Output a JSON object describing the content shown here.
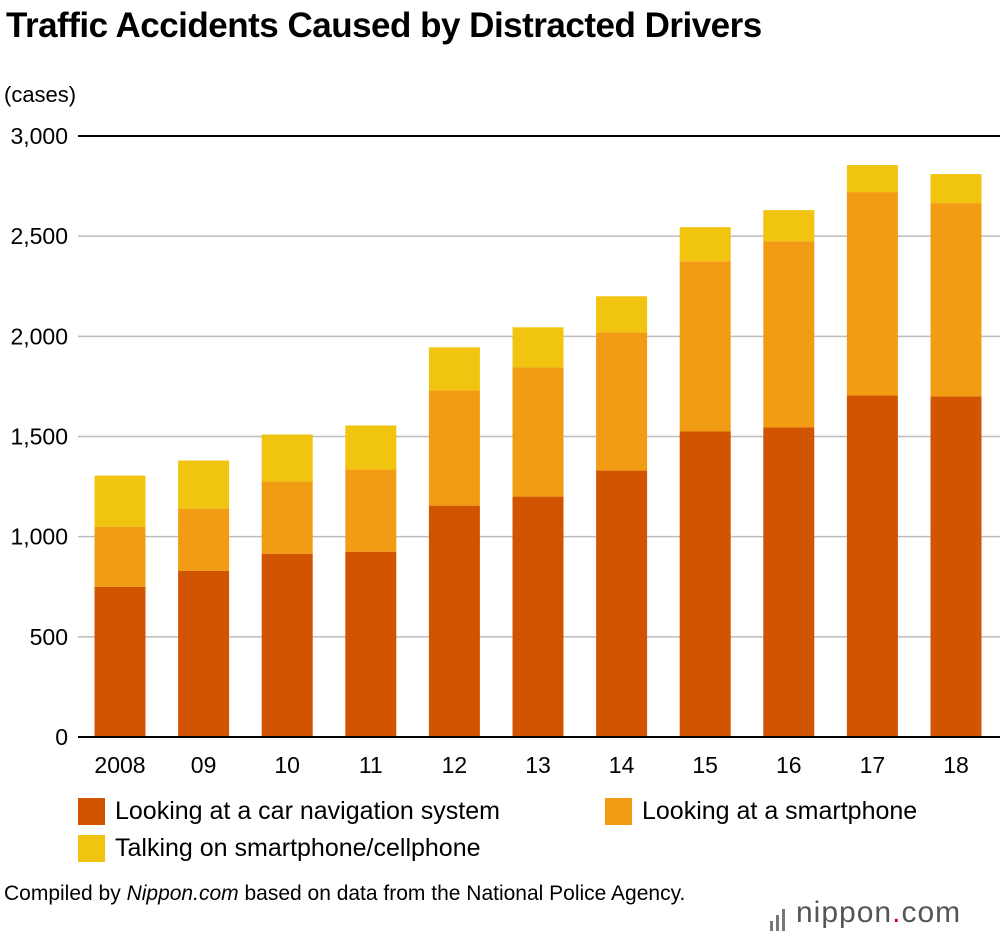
{
  "chart_data": {
    "type": "bar",
    "stacked": true,
    "title": "Traffic Accidents Caused by Distracted Drivers",
    "ylabel": "(cases)",
    "xlabel": "",
    "ylim": [
      0,
      3000
    ],
    "yticks": [
      0,
      500,
      1000,
      1500,
      2000,
      2500,
      3000
    ],
    "ytick_labels": [
      "0",
      "500",
      "1,000",
      "1,500",
      "2,000",
      "2,500",
      "3,000"
    ],
    "categories": [
      "2008",
      "09",
      "10",
      "11",
      "12",
      "13",
      "14",
      "15",
      "16",
      "17",
      "18"
    ],
    "series": [
      {
        "name": "Looking at a car navigation system",
        "color": "#d15400",
        "values": [
          750,
          830,
          915,
          925,
          1155,
          1200,
          1330,
          1525,
          1545,
          1705,
          1700
        ]
      },
      {
        "name": "Looking at a smartphone",
        "color": "#f29c13",
        "values": [
          300,
          310,
          360,
          410,
          575,
          645,
          690,
          850,
          930,
          1015,
          965
        ]
      },
      {
        "name": "Talking on smartphone/cellphone",
        "color": "#f0c40f",
        "values": [
          255,
          240,
          235,
          220,
          215,
          200,
          180,
          170,
          155,
          135,
          145
        ]
      }
    ],
    "legend_position": "bottom",
    "grid": true
  },
  "source": {
    "prefix": "Compiled by ",
    "site": "Nippon.com",
    "suffix": " based on data from the National Police Agency."
  },
  "brand": {
    "name": "nippon",
    "dot": ".",
    "tld": "com"
  }
}
